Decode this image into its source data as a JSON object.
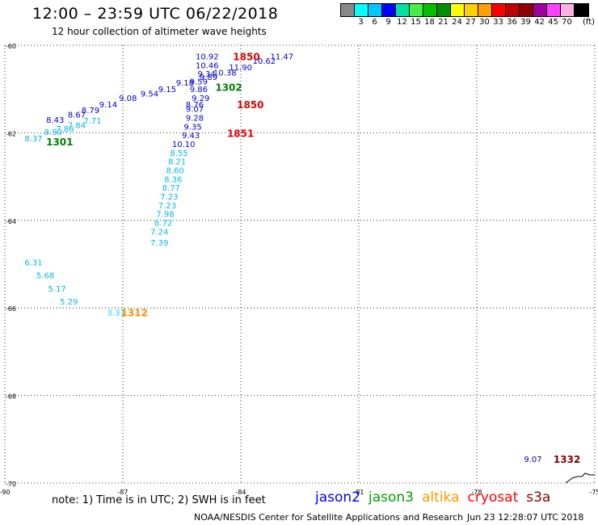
{
  "title": "12:00 – 23:59 UTC 06/22/2018",
  "subtitle": "12 hour collection of altimeter wave heights",
  "colorbar": {
    "colors": [
      "#888888",
      "#00ffff",
      "#00c8ff",
      "#0000ff",
      "#00e0a0",
      "#44ee44",
      "#00c000",
      "#009000",
      "#ffff00",
      "#ffd000",
      "#ffa000",
      "#ff0000",
      "#c00000",
      "#900000",
      "#a000a0",
      "#ff40ff",
      "#ffb0e0",
      "#000000"
    ],
    "ticks": [
      "3",
      "6",
      "9",
      "12",
      "15",
      "18",
      "21",
      "24",
      "27",
      "30",
      "33",
      "36",
      "39",
      "42",
      "45",
      "70"
    ],
    "unit": "(ft)"
  },
  "map": {
    "lon_range": [
      -90,
      -75
    ],
    "lat_range": [
      -70,
      -60
    ],
    "lon_ticks": [
      "-90",
      "-87",
      "-84",
      "-81",
      "-78",
      "-75"
    ],
    "lat_ticks": [
      "-60",
      "-62",
      "-64",
      "-66",
      "-68",
      "-70"
    ],
    "grid": "dotted",
    "observations": [
      {
        "lon": -85.15,
        "lat": -60.25,
        "text": "10.92",
        "color": "#0000cc"
      },
      {
        "lon": -85.15,
        "lat": -60.45,
        "text": "10.46",
        "color": "#0000cc"
      },
      {
        "lon": -84.3,
        "lat": -60.5,
        "text": "11.90",
        "color": "#0000cc"
      },
      {
        "lon": -83.7,
        "lat": -60.35,
        "text": "10.62",
        "color": "#0000cc"
      },
      {
        "lon": -83.25,
        "lat": -60.25,
        "text": "11.47",
        "color": "#0000cc"
      },
      {
        "lon": -85.1,
        "lat": -60.65,
        "text": "9.34",
        "color": "#0000cc"
      },
      {
        "lon": -84.7,
        "lat": -60.62,
        "text": "10.38",
        "color": "#0000cc"
      },
      {
        "lon": -85.3,
        "lat": -60.82,
        "text": "9.59",
        "color": "#0000cc"
      },
      {
        "lon": -85.05,
        "lat": -60.72,
        "text": "9.89",
        "color": "#0000cc"
      },
      {
        "lon": -85.3,
        "lat": -61.0,
        "text": "9.86",
        "color": "#0000cc"
      },
      {
        "lon": -85.25,
        "lat": -61.2,
        "text": "9.29",
        "color": "#0000cc"
      },
      {
        "lon": -85.65,
        "lat": -60.85,
        "text": "9.18",
        "color": "#0000cc"
      },
      {
        "lon": -86.1,
        "lat": -61.0,
        "text": "9.15",
        "color": "#0000cc"
      },
      {
        "lon": -86.55,
        "lat": -61.1,
        "text": "9.54",
        "color": "#0000cc"
      },
      {
        "lon": -87.1,
        "lat": -61.2,
        "text": "9.08",
        "color": "#0000cc"
      },
      {
        "lon": -87.6,
        "lat": -61.35,
        "text": "9.14",
        "color": "#0000cc"
      },
      {
        "lon": -88.05,
        "lat": -61.48,
        "text": "8.79",
        "color": "#0000cc"
      },
      {
        "lon": -88.4,
        "lat": -61.58,
        "text": "8.67",
        "color": "#0000cc"
      },
      {
        "lon": -88.95,
        "lat": -61.7,
        "text": "8.43",
        "color": "#0000cc"
      },
      {
        "lon": -85.4,
        "lat": -61.35,
        "text": "8.76",
        "color": "#0000cc"
      },
      {
        "lon": -85.4,
        "lat": -61.45,
        "text": "9.07",
        "color": "#0000cc"
      },
      {
        "lon": -85.4,
        "lat": -61.65,
        "text": "9.28",
        "color": "#0000cc"
      },
      {
        "lon": -85.45,
        "lat": -61.85,
        "text": "9.35",
        "color": "#0000cc"
      },
      {
        "lon": -85.5,
        "lat": -62.05,
        "text": "9.43",
        "color": "#0000cc"
      },
      {
        "lon": -85.75,
        "lat": -62.25,
        "text": "10.10",
        "color": "#0000cc"
      },
      {
        "lon": -85.8,
        "lat": -62.45,
        "text": "8.55",
        "color": "#00b8e8"
      },
      {
        "lon": -85.85,
        "lat": -62.65,
        "text": "8.21",
        "color": "#00b8e8"
      },
      {
        "lon": -85.9,
        "lat": -62.85,
        "text": "8.60",
        "color": "#00b8e8"
      },
      {
        "lon": -85.95,
        "lat": -63.05,
        "text": "8.36",
        "color": "#00b8e8"
      },
      {
        "lon": -86.0,
        "lat": -63.25,
        "text": "8.77",
        "color": "#00b8e8"
      },
      {
        "lon": -86.05,
        "lat": -63.45,
        "text": "7.23",
        "color": "#00b8e8"
      },
      {
        "lon": -86.1,
        "lat": -63.65,
        "text": "7.23",
        "color": "#00b8e8"
      },
      {
        "lon": -86.15,
        "lat": -63.85,
        "text": "7.98",
        "color": "#00b8e8"
      },
      {
        "lon": -86.2,
        "lat": -64.05,
        "text": "8.72",
        "color": "#00b8e8"
      },
      {
        "lon": -86.3,
        "lat": -64.25,
        "text": "7.24",
        "color": "#00b8e8"
      },
      {
        "lon": -86.3,
        "lat": -64.5,
        "text": "7.39",
        "color": "#00b8e8"
      },
      {
        "lon": -89.5,
        "lat": -62.12,
        "text": "8.37",
        "color": "#00b8e8"
      },
      {
        "lon": -89.0,
        "lat": -61.97,
        "text": "8.90",
        "color": "#00b8e8"
      },
      {
        "lon": -88.7,
        "lat": -61.9,
        "text": "7.86",
        "color": "#00b8e8"
      },
      {
        "lon": -88.4,
        "lat": -61.82,
        "text": "7.84",
        "color": "#00b8e8"
      },
      {
        "lon": -88.0,
        "lat": -61.72,
        "text": "7.71",
        "color": "#00b8e8"
      },
      {
        "lon": -89.5,
        "lat": -64.95,
        "text": "6.31",
        "color": "#00b8e8"
      },
      {
        "lon": -89.2,
        "lat": -65.25,
        "text": "5.68",
        "color": "#00b8e8"
      },
      {
        "lon": -88.9,
        "lat": -65.55,
        "text": "5.17",
        "color": "#00b8e8"
      },
      {
        "lon": -88.6,
        "lat": -65.85,
        "text": "5.29",
        "color": "#00b8e8"
      },
      {
        "lon": -87.4,
        "lat": -66.1,
        "text": "3.31",
        "color": "#00e0ff"
      },
      {
        "lon": -76.8,
        "lat": -69.45,
        "text": "9.07",
        "color": "#0000cc"
      }
    ],
    "time_labels": [
      {
        "lon": -84.2,
        "lat": -60.25,
        "text": "1850",
        "color": "#e00000"
      },
      {
        "lon": -84.65,
        "lat": -60.95,
        "text": "1302",
        "color": "#008000"
      },
      {
        "lon": -84.1,
        "lat": -61.35,
        "text": "1850",
        "color": "#e00000"
      },
      {
        "lon": -84.35,
        "lat": -62.0,
        "text": "1851",
        "color": "#e00000"
      },
      {
        "lon": -88.95,
        "lat": -62.2,
        "text": "1301",
        "color": "#008000"
      },
      {
        "lon": -87.05,
        "lat": -66.1,
        "text": "1312",
        "color": "#ff8c00"
      },
      {
        "lon": -76.05,
        "lat": -69.45,
        "text": "1332",
        "color": "#800000"
      }
    ],
    "coastline_icon": "coastline-segment"
  },
  "note": "note:  1) Time is in UTC;  2) SWH is in feet",
  "legend": [
    {
      "label": "jason2",
      "color": "#0000ff"
    },
    {
      "label": "jason3",
      "color": "#00a000"
    },
    {
      "label": "altika",
      "color": "#ff9900"
    },
    {
      "label": "cryosat",
      "color": "#ff0000"
    },
    {
      "label": "s3a",
      "color": "#8b0000"
    }
  ],
  "credit": "NOAA/NESDIS Center for Satellite Applications and Research",
  "credit_time": "Jun 23 12:28:07 UTC 2018"
}
